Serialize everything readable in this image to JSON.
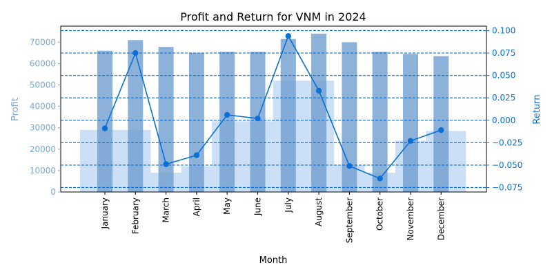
{
  "chart_data": {
    "type": "bar+line",
    "title": "Profit and Return for VNM in 2024",
    "xlabel": "Month",
    "ylabel_left": "Profit",
    "ylabel_right": "Return",
    "categories": [
      "January",
      "February",
      "March",
      "April",
      "May",
      "June",
      "July",
      "August",
      "September",
      "October",
      "November",
      "December"
    ],
    "ylim_left": [
      0,
      77500
    ],
    "yticks_left": [
      0,
      10000,
      20000,
      30000,
      40000,
      50000,
      60000,
      70000
    ],
    "ylim_right": [
      -0.08,
      0.105
    ],
    "yticks_right": [
      -0.075,
      -0.05,
      -0.025,
      0.0,
      0.025,
      0.05,
      0.075,
      0.1
    ],
    "ytick_labels_right": [
      "−0.075",
      "−0.050",
      "−0.025",
      "0.000",
      "0.025",
      "0.050",
      "0.075",
      "0.100"
    ],
    "grid": "dashed horizontal lines on right axis",
    "series": [
      {
        "name": "Profit",
        "kind": "bar",
        "axis": "left",
        "color": "#6f9fd0",
        "values": [
          66000,
          71000,
          67800,
          65000,
          65500,
          65500,
          71500,
          74000,
          70000,
          65500,
          64500,
          63500
        ]
      },
      {
        "name": "Return",
        "kind": "line",
        "axis": "right",
        "color": "#0b6fd6",
        "values": [
          -0.009,
          0.075,
          -0.049,
          -0.039,
          0.006,
          0.002,
          0.094,
          0.033,
          -0.051,
          -0.065,
          -0.023,
          -0.011
        ]
      },
      {
        "kind": "area",
        "axis": "left",
        "color": "#b9d5f3",
        "values": [
          29000,
          29000,
          9000,
          12000,
          33000,
          33000,
          52000,
          52000,
          12500,
          9000,
          24000,
          28500
        ]
      }
    ],
    "colors": {
      "left_axis": "#7aa6cf",
      "right_axis": "#0b6fd6",
      "bar": "#6f9fd0",
      "line": "#0b6fd6",
      "area": "#b9d5f3"
    }
  }
}
